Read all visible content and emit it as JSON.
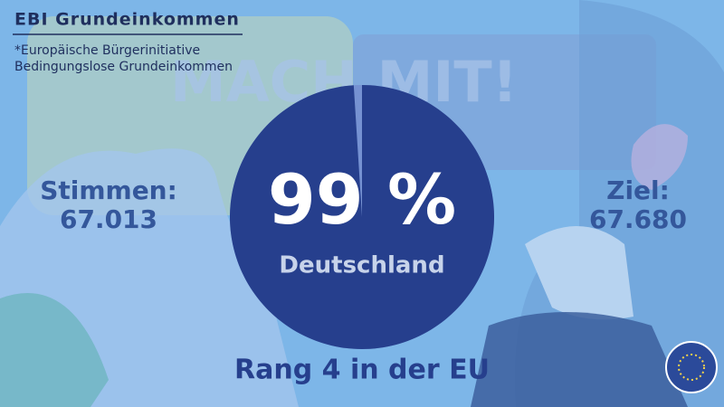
{
  "header": {
    "title": "EBI Grundeinkommen",
    "subtitle_lines": [
      "*Europäische Bürgerinitiative",
      "Bedingungslose Grundeinkommen"
    ]
  },
  "background_slogan": "MACH MIT!",
  "votes": {
    "label": "Stimmen:",
    "value": "67.013"
  },
  "goal": {
    "label": "Ziel:",
    "value": "67.680"
  },
  "chart_data": {
    "type": "pie",
    "categories": [
      "Deutschland"
    ],
    "values": [
      99
    ],
    "value_labels": [
      "99 %"
    ],
    "color": "#263f8d"
  },
  "rank": "Rang 4 in der EU"
}
